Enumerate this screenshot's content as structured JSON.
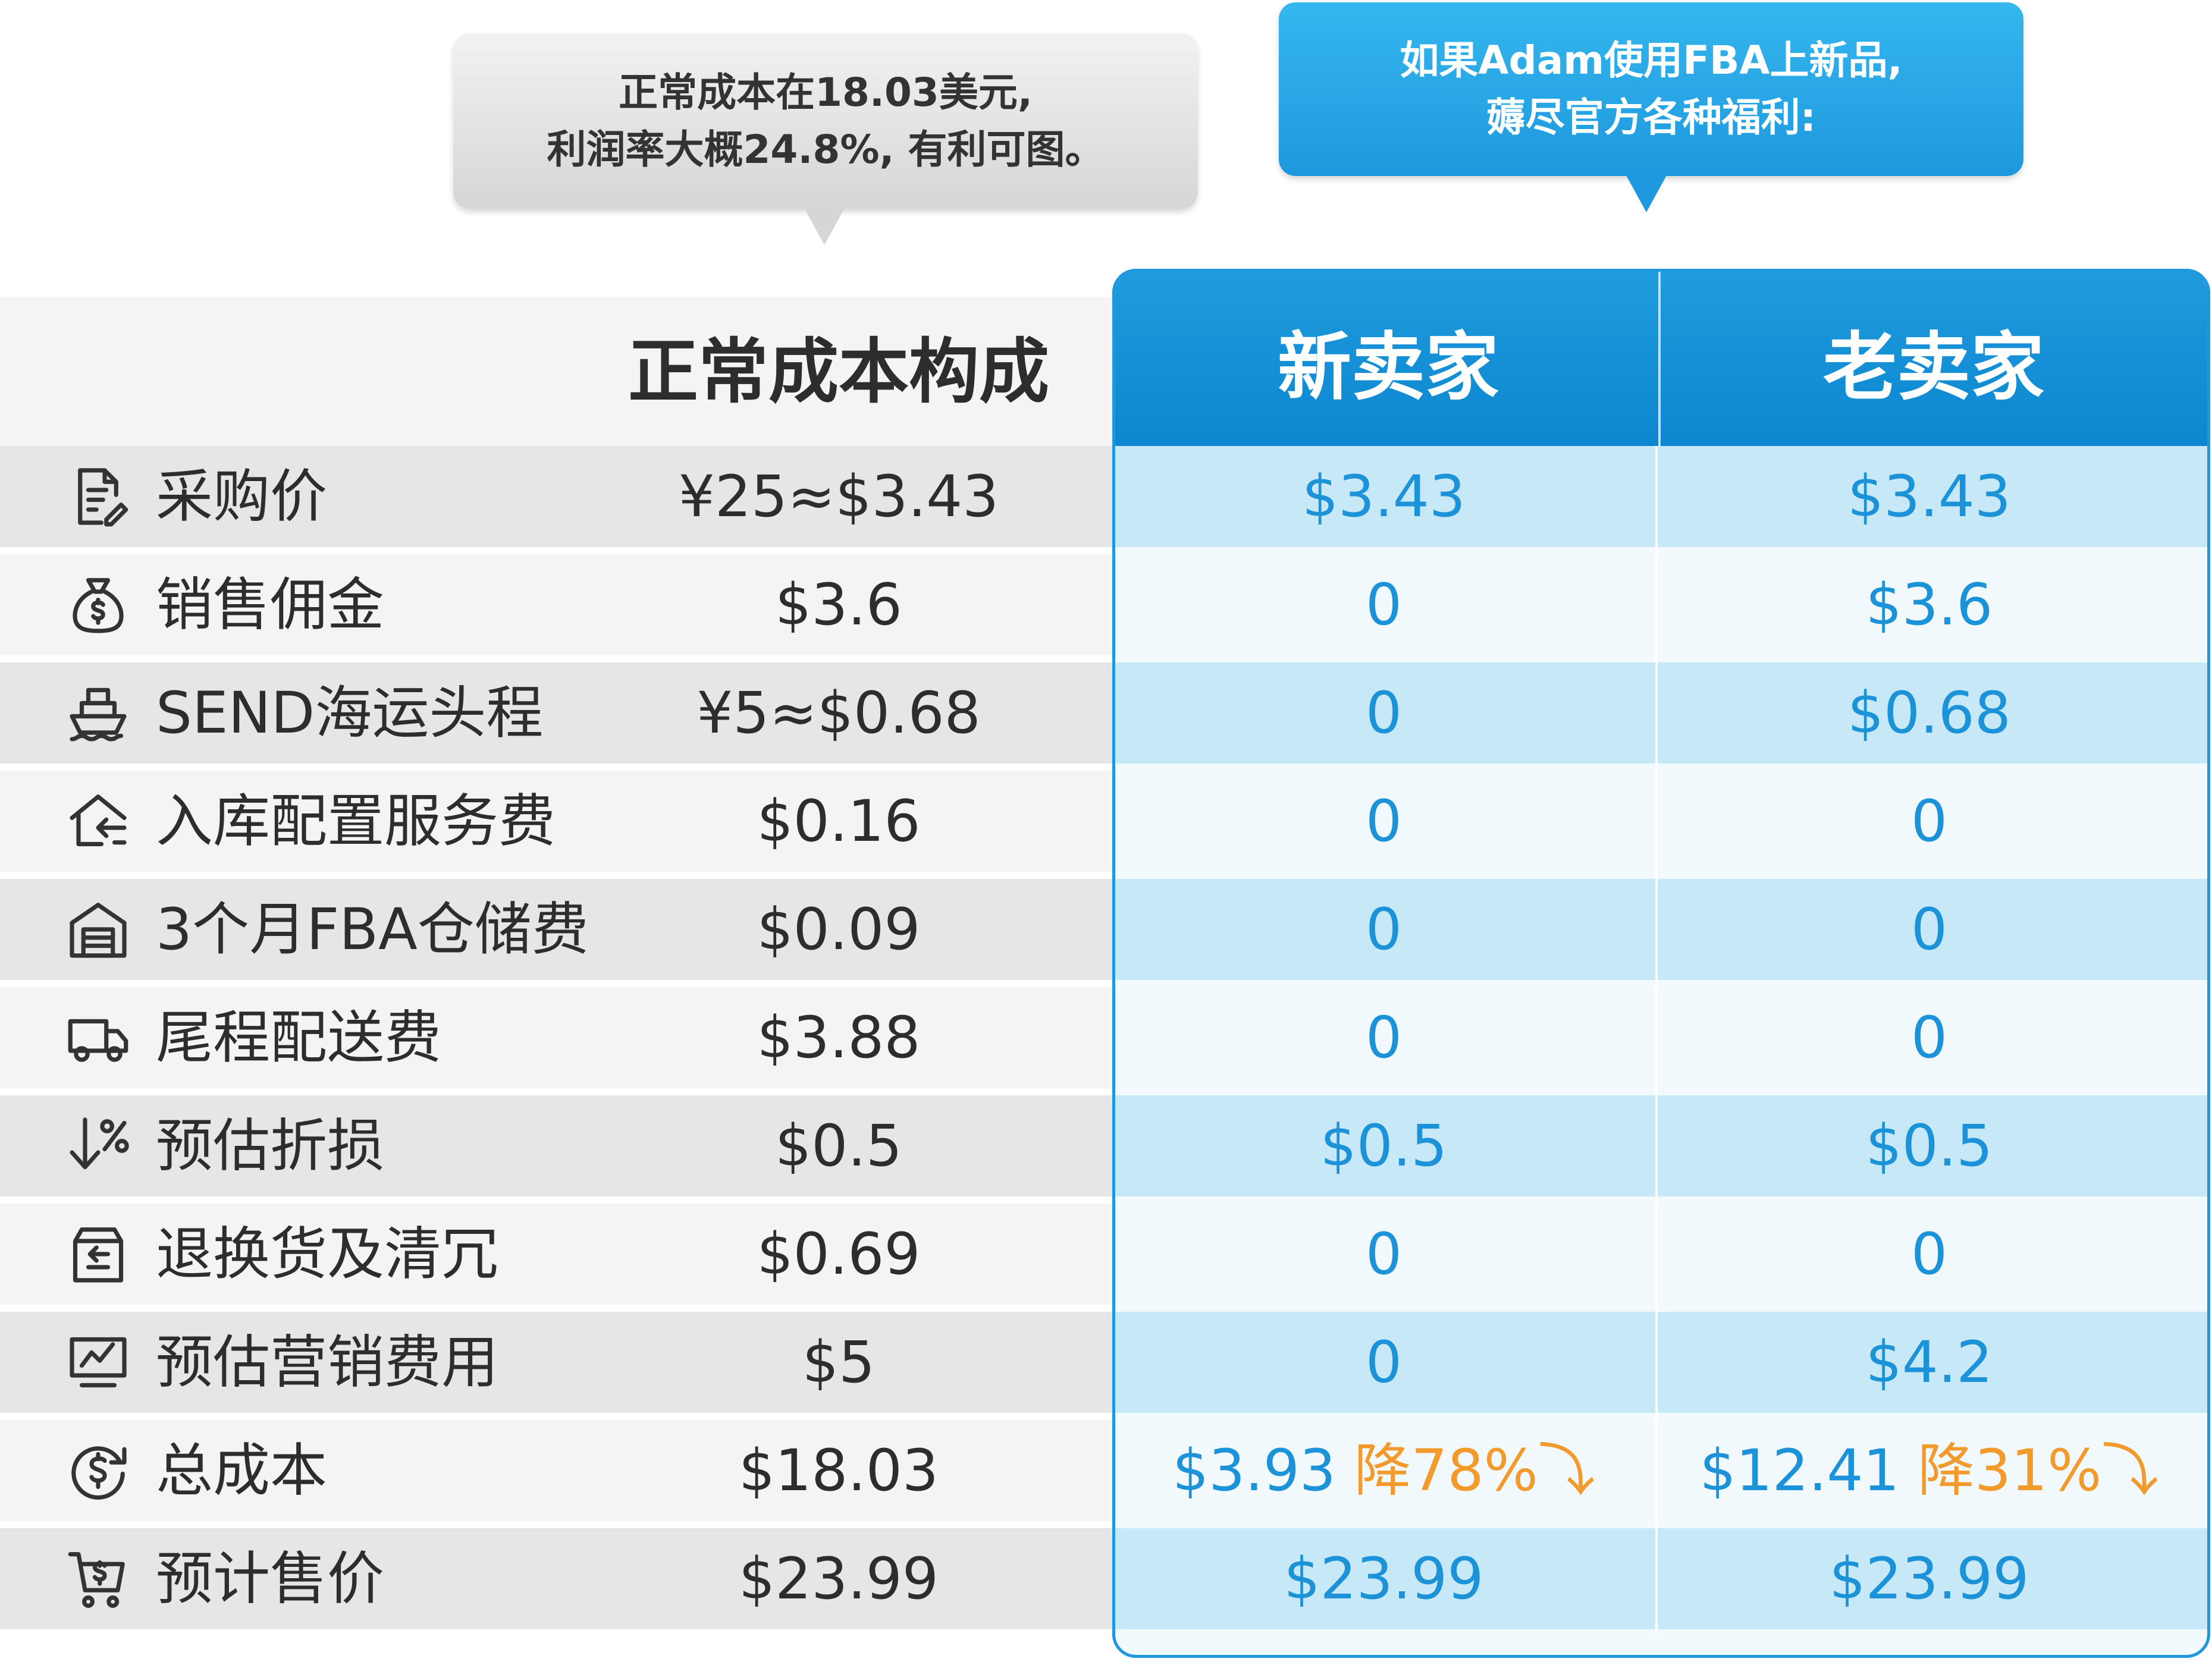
{
  "callouts": {
    "normal": {
      "line1": "正常成本在18.03美元,",
      "line2": "利润率大概24.8%, 有利可图。"
    },
    "fba": {
      "line1": "如果Adam使用FBA上新品,",
      "line2": "薅尽官方各种福利:"
    }
  },
  "headers": {
    "normal": "正常成本构成",
    "new_seller": "新卖家",
    "old_seller": "老卖家"
  },
  "rows": [
    {
      "icon": "document-edit-icon",
      "label": "采购价",
      "normal": "¥25≈$3.43",
      "new_seller": "$3.43",
      "old_seller": "$3.43"
    },
    {
      "icon": "money-bag-icon",
      "label": "销售佣金",
      "normal": "$3.6",
      "new_seller": "0",
      "old_seller": "$3.6"
    },
    {
      "icon": "ship-icon",
      "label": "SEND海运头程",
      "normal": "¥5≈$0.68",
      "new_seller": "0",
      "old_seller": "$0.68"
    },
    {
      "icon": "warehouse-inbound-icon",
      "label": "入库配置服务费",
      "normal": "$0.16",
      "new_seller": "0",
      "old_seller": "0"
    },
    {
      "icon": "warehouse-icon",
      "label": "3个月FBA仓储费",
      "normal": "$0.09",
      "new_seller": "0",
      "old_seller": "0"
    },
    {
      "icon": "truck-icon",
      "label": "尾程配送费",
      "normal": "$3.88",
      "new_seller": "0",
      "old_seller": "0"
    },
    {
      "icon": "discount-down-icon",
      "label": "预估折损",
      "normal": "$0.5",
      "new_seller": "$0.5",
      "old_seller": "$0.5"
    },
    {
      "icon": "return-box-icon",
      "label": "退换货及清冗",
      "normal": "$0.69",
      "new_seller": "0",
      "old_seller": "0"
    },
    {
      "icon": "marketing-chart-icon",
      "label": "预估营销费用",
      "normal": "$5",
      "new_seller": "0",
      "old_seller": "$4.2"
    },
    {
      "icon": "dollar-cycle-icon",
      "label": "总成本",
      "normal": "$18.03",
      "new_seller": "$3.93",
      "old_seller": "$12.41",
      "new_seller_drop": "降78%",
      "old_seller_drop": "降31%"
    },
    {
      "icon": "cart-icon",
      "label": "预计售价",
      "normal": "$23.99",
      "new_seller": "$23.99",
      "old_seller": "$23.99"
    }
  ],
  "colors": {
    "blue_accent": "#1c92d8",
    "orange_drop": "#f39a2c",
    "header_blue": "#0c86cf"
  }
}
